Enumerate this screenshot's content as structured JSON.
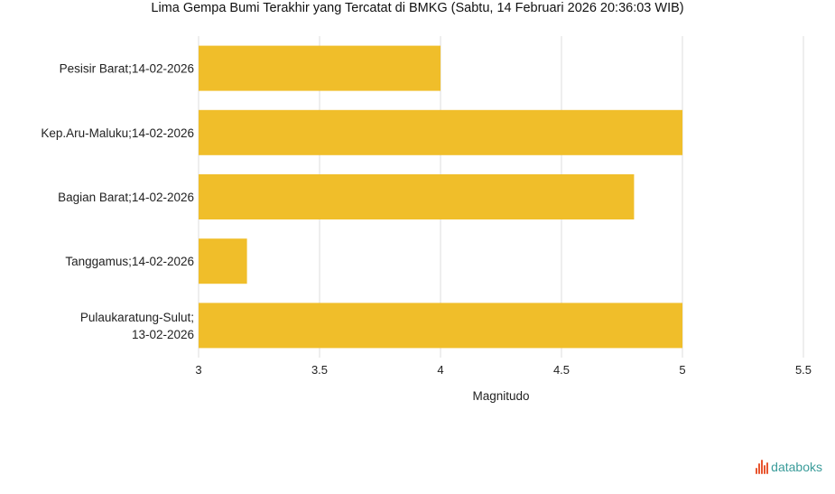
{
  "title": "Lima Gempa Bumi Terakhir yang Tercatat di BMKG (Sabtu, 14 Februari 2026 20:36:03 WIB)",
  "brand": {
    "name": "databoks",
    "icon": "databoks-logo-icon"
  },
  "colors": {
    "bar": "#F0BE2A",
    "grid": "#DDDDDD"
  },
  "chart_data": {
    "type": "bar",
    "orientation": "horizontal",
    "title": "Lima Gempa Bumi Terakhir yang Tercatat di BMKG (Sabtu, 14 Februari 2026 20:36:03 WIB)",
    "categories": [
      [
        "Pesisir Barat;14-02-2026"
      ],
      [
        "Kep.Aru-Maluku;14-02-2026"
      ],
      [
        "Bagian Barat;14-02-2026"
      ],
      [
        "Tanggamus;14-02-2026"
      ],
      [
        "Pulaukaratung-Sulut;",
        "13-02-2026"
      ]
    ],
    "values": [
      4.0,
      5.0,
      4.8,
      3.2,
      5.0
    ],
    "xlabel": "Magnitudo",
    "ylabel": "",
    "xlim": [
      3,
      5.5
    ],
    "xticks": [
      "3",
      "3.5",
      "4",
      "4.5",
      "5",
      "5.5"
    ],
    "grid": true
  }
}
